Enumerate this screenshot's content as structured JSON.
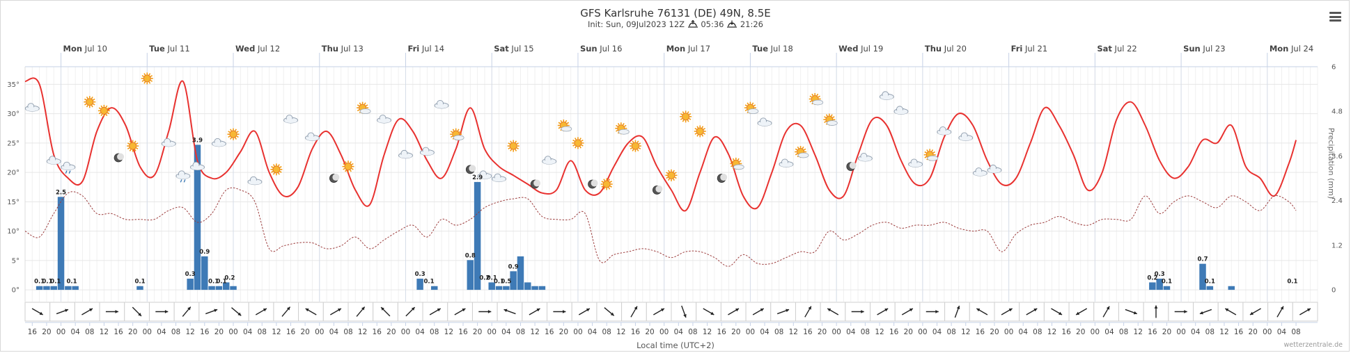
{
  "title": "GFS Karlsruhe 76131 (DE) 49N, 8.5E",
  "subtitle": {
    "init": "Init: Sun, 09Jul2023 12Z",
    "sunrise": "05:36",
    "sunset": "21:26"
  },
  "xaxis_title": "Local time (UTC+2)",
  "right_axis_title": "Precipitation (mm)",
  "credit": "wetterzentrale.de",
  "menu_label": "Chart context menu",
  "colors": {
    "temp": "#e8312f",
    "dew": "#9b3a3a",
    "precip": "#3e7ab6",
    "grid": "#e6e6e6",
    "axis": "#c6d1e6"
  },
  "chart_data": {
    "type": "line",
    "title": "GFS Karlsruhe 76131 (DE) 49N, 8.5E",
    "x_unit": "hours since Sun Jul 09 14:00 local",
    "x_range": [
      0,
      360
    ],
    "ylim_left": [
      -2,
      38
    ],
    "ylim_right": [
      0,
      6
    ],
    "y_ticks_left": [
      "0°",
      "5°",
      "10°",
      "15°",
      "20°",
      "25°",
      "30°",
      "35°"
    ],
    "y_ticks_right": [
      "0",
      "1.2",
      "2.4",
      "3.6",
      "4.8",
      "6"
    ],
    "days": [
      {
        "d": "Mon",
        "n": "Jul 10",
        "h": 10
      },
      {
        "d": "Tue",
        "n": "Jul 11",
        "h": 34
      },
      {
        "d": "Wed",
        "n": "Jul 12",
        "h": 58
      },
      {
        "d": "Thu",
        "n": "Jul 13",
        "h": 82
      },
      {
        "d": "Fri",
        "n": "Jul 14",
        "h": 106
      },
      {
        "d": "Sat",
        "n": "Jul 15",
        "h": 130
      },
      {
        "d": "Sun",
        "n": "Jul 16",
        "h": 154
      },
      {
        "d": "Mon",
        "n": "Jul 17",
        "h": 178
      },
      {
        "d": "Tue",
        "n": "Jul 18",
        "h": 202
      },
      {
        "d": "Wed",
        "n": "Jul 19",
        "h": 226
      },
      {
        "d": "Thu",
        "n": "Jul 20",
        "h": 250
      },
      {
        "d": "Fri",
        "n": "Jul 21",
        "h": 274
      },
      {
        "d": "Sat",
        "n": "Jul 22",
        "h": 298
      },
      {
        "d": "Sun",
        "n": "Jul 23",
        "h": 322
      },
      {
        "d": "Mon",
        "n": "Jul 24",
        "h": 346
      }
    ],
    "hour_labels": [
      "16",
      "20",
      "00",
      "04",
      "08",
      "12",
      "16",
      "20",
      "00",
      "04",
      "08",
      "12",
      "16",
      "20",
      "00",
      "04",
      "08",
      "12",
      "16",
      "20",
      "00",
      "04",
      "08",
      "12",
      "16",
      "20",
      "00",
      "04",
      "08",
      "12",
      "16",
      "20",
      "00",
      "04",
      "08",
      "12",
      "16",
      "20",
      "00",
      "04",
      "08",
      "12",
      "16",
      "20",
      "00",
      "04",
      "08",
      "12",
      "16",
      "20",
      "00",
      "04",
      "08",
      "12",
      "16",
      "20",
      "00",
      "04",
      "08",
      "12",
      "16",
      "20",
      "00",
      "04",
      "08",
      "12",
      "16",
      "20",
      "00",
      "04",
      "08",
      "12",
      "16",
      "20",
      "00",
      "04",
      "08",
      "12",
      "16",
      "20",
      "00",
      "04",
      "08",
      "12",
      "16",
      "20",
      "00",
      "04",
      "08"
    ],
    "series": [
      {
        "name": "Temperature",
        "axis": "left",
        "style": "solid",
        "x": [
          0,
          4,
          8,
          12,
          16,
          20,
          24,
          28,
          32,
          36,
          40,
          44,
          48,
          52,
          56,
          60,
          64,
          68,
          72,
          76,
          80,
          84,
          88,
          92,
          96,
          100,
          104,
          108,
          112,
          116,
          120,
          124,
          128,
          132,
          136,
          140,
          144,
          148,
          152,
          156,
          160,
          164,
          168,
          172,
          176,
          180,
          184,
          188,
          192,
          196,
          200,
          204,
          208,
          212,
          216,
          220,
          224,
          228,
          232,
          236,
          240,
          244,
          248,
          252,
          256,
          260,
          264,
          268,
          272,
          276,
          280,
          284,
          288,
          292,
          296,
          300,
          304,
          308,
          312,
          316,
          320,
          324,
          328,
          332,
          336,
          340,
          344,
          348,
          352,
          354
        ],
        "values": [
          35.5,
          35,
          23,
          19,
          18.5,
          27,
          31,
          28,
          21,
          19.5,
          27,
          35.5,
          22,
          19,
          20,
          23.5,
          27,
          20,
          16,
          17.5,
          24,
          27,
          23,
          17,
          14.5,
          23,
          29,
          27,
          22,
          19,
          24,
          31,
          24,
          21,
          19.5,
          18,
          16.5,
          17,
          22,
          17,
          16.5,
          21,
          25,
          26,
          21,
          17,
          13.5,
          20,
          26,
          23,
          16,
          14,
          20,
          27,
          28,
          23,
          17,
          16,
          23,
          29,
          28,
          22,
          18,
          19,
          26,
          30,
          28,
          22,
          18,
          19,
          25,
          31,
          28,
          23,
          17,
          20,
          29,
          32,
          28,
          22,
          19,
          21,
          25.5,
          25,
          28,
          21,
          19,
          16,
          21.5,
          25.5
        ]
      },
      {
        "name": "Dew point",
        "axis": "left",
        "style": "dashed",
        "x": [
          0,
          4,
          8,
          12,
          16,
          20,
          24,
          28,
          32,
          36,
          40,
          44,
          48,
          52,
          56,
          60,
          64,
          68,
          72,
          76,
          80,
          84,
          88,
          92,
          96,
          100,
          104,
          108,
          112,
          116,
          120,
          124,
          128,
          132,
          136,
          140,
          144,
          148,
          152,
          156,
          160,
          164,
          168,
          172,
          176,
          180,
          184,
          188,
          192,
          196,
          200,
          204,
          208,
          212,
          216,
          220,
          224,
          228,
          232,
          236,
          240,
          244,
          248,
          252,
          256,
          260,
          264,
          268,
          272,
          276,
          280,
          284,
          288,
          292,
          296,
          300,
          304,
          308,
          312,
          316,
          320,
          324,
          328,
          332,
          336,
          340,
          344,
          348,
          352,
          354
        ],
        "values": [
          10,
          9,
          13,
          16.5,
          16,
          13,
          13,
          12,
          12,
          12,
          13.5,
          14,
          11.5,
          13,
          17,
          17,
          15,
          7,
          7.5,
          8,
          8,
          7,
          7.5,
          9,
          7,
          8.5,
          10,
          11,
          9,
          12,
          11,
          12,
          14,
          15,
          15.5,
          15.5,
          12.5,
          12,
          12,
          13,
          5,
          6,
          6.5,
          7,
          6.5,
          5.5,
          6.5,
          6.5,
          5.5,
          4,
          6,
          4.5,
          4.5,
          5.5,
          6.5,
          6.5,
          10,
          8.5,
          9.5,
          11,
          11.5,
          10.5,
          11,
          11,
          11.5,
          10.5,
          10,
          10,
          6.5,
          9.5,
          11,
          11.5,
          12.5,
          11.5,
          11,
          12,
          12,
          12,
          16,
          13,
          15,
          16,
          15,
          14,
          16,
          15,
          13.5,
          16,
          15,
          13.5
        ]
      },
      {
        "name": "Precipitation",
        "axis": "right",
        "type": "bar",
        "x": [
          4,
          6,
          8,
          10,
          12,
          14,
          32,
          46,
          48,
          50,
          52,
          54,
          56,
          58,
          110,
          114,
          124,
          126,
          130,
          132,
          134,
          136,
          138,
          140,
          142,
          144,
          314,
          316,
          318,
          328,
          330,
          336
        ],
        "values": [
          0.1,
          0.1,
          0.1,
          2.5,
          0.1,
          0.1,
          0.1,
          0.3,
          3.9,
          0.9,
          0.1,
          0.1,
          0.2,
          0.1,
          0.3,
          0.1,
          0.8,
          2.9,
          0.2,
          0.1,
          0.1,
          0.5,
          0.9,
          0.2,
          0.1,
          0.1,
          0.2,
          0.3,
          0.1,
          0.7,
          0.1,
          0.1
        ],
        "labels": [
          {
            "x": 4,
            "t": "0.1"
          },
          {
            "x": 6.2,
            "t": "0.1"
          },
          {
            "x": 8.5,
            "t": "0.1"
          },
          {
            "x": 10,
            "t": "2.5"
          },
          {
            "x": 13,
            "t": "0.1"
          },
          {
            "x": 32,
            "t": "0.1"
          },
          {
            "x": 46,
            "t": "0.3"
          },
          {
            "x": 48,
            "t": "3.9"
          },
          {
            "x": 50,
            "t": "0.9"
          },
          {
            "x": 52.5,
            "t": "0.1"
          },
          {
            "x": 54.7,
            "t": "0.1"
          },
          {
            "x": 57,
            "t": "0.2"
          },
          {
            "x": 110,
            "t": "0.3"
          },
          {
            "x": 112.5,
            "t": "0.1"
          },
          {
            "x": 124,
            "t": "0.8"
          },
          {
            "x": 126,
            "t": "2.9"
          },
          {
            "x": 128,
            "t": "0.2"
          },
          {
            "x": 130,
            "t": "0.1"
          },
          {
            "x": 132,
            "t": "0.1"
          },
          {
            "x": 134,
            "t": "0.5"
          },
          {
            "x": 136,
            "t": "0.9"
          },
          {
            "x": 314,
            "t": "0.2"
          },
          {
            "x": 316,
            "t": "0.3"
          },
          {
            "x": 318,
            "t": "0.1"
          },
          {
            "x": 328,
            "t": "0.7"
          },
          {
            "x": 330,
            "t": "0.1"
          },
          {
            "x": 353,
            "t": "0.1"
          }
        ]
      }
    ],
    "weather_icons": [
      {
        "x": 2,
        "t": 31,
        "k": "cloud"
      },
      {
        "x": 8,
        "t": 22,
        "k": "cloud"
      },
      {
        "x": 12,
        "t": 21,
        "k": "rain"
      },
      {
        "x": 18,
        "t": 32,
        "k": "sun"
      },
      {
        "x": 22,
        "t": 30.5,
        "k": "sun"
      },
      {
        "x": 26,
        "t": 22.5,
        "k": "moon"
      },
      {
        "x": 30,
        "t": 24.5,
        "k": "sun"
      },
      {
        "x": 34,
        "t": 36,
        "k": "sun"
      },
      {
        "x": 40,
        "t": 25,
        "k": "cloud"
      },
      {
        "x": 44,
        "t": 19.5,
        "k": "rain"
      },
      {
        "x": 48,
        "t": 21,
        "k": "cloud"
      },
      {
        "x": 54,
        "t": 25,
        "k": "cloud"
      },
      {
        "x": 58,
        "t": 26.5,
        "k": "sun"
      },
      {
        "x": 64,
        "t": 18.5,
        "k": "cloud"
      },
      {
        "x": 70,
        "t": 20.5,
        "k": "sun"
      },
      {
        "x": 74,
        "t": 29,
        "k": "cloud"
      },
      {
        "x": 80,
        "t": 26,
        "k": "cloud"
      },
      {
        "x": 86,
        "t": 19,
        "k": "moon"
      },
      {
        "x": 90,
        "t": 21,
        "k": "sun"
      },
      {
        "x": 94,
        "t": 31,
        "k": "sun-cloud"
      },
      {
        "x": 100,
        "t": 29,
        "k": "cloud"
      },
      {
        "x": 106,
        "t": 23,
        "k": "cloud"
      },
      {
        "x": 112,
        "t": 23.5,
        "k": "cloud"
      },
      {
        "x": 116,
        "t": 31.5,
        "k": "cloud"
      },
      {
        "x": 120,
        "t": 26.5,
        "k": "sun-cloud"
      },
      {
        "x": 124,
        "t": 20.5,
        "k": "moon"
      },
      {
        "x": 128,
        "t": 19.5,
        "k": "cloud"
      },
      {
        "x": 132,
        "t": 19,
        "k": "cloud"
      },
      {
        "x": 136,
        "t": 24.5,
        "k": "sun"
      },
      {
        "x": 142,
        "t": 18,
        "k": "moon"
      },
      {
        "x": 146,
        "t": 22,
        "k": "cloud"
      },
      {
        "x": 150,
        "t": 28,
        "k": "sun-cloud"
      },
      {
        "x": 154,
        "t": 25,
        "k": "sun"
      },
      {
        "x": 158,
        "t": 18,
        "k": "moon"
      },
      {
        "x": 162,
        "t": 18,
        "k": "sun"
      },
      {
        "x": 166,
        "t": 27.5,
        "k": "sun-cloud"
      },
      {
        "x": 170,
        "t": 24.5,
        "k": "sun"
      },
      {
        "x": 176,
        "t": 17,
        "k": "moon"
      },
      {
        "x": 180,
        "t": 19.5,
        "k": "sun"
      },
      {
        "x": 184,
        "t": 29.5,
        "k": "sun"
      },
      {
        "x": 188,
        "t": 27,
        "k": "sun"
      },
      {
        "x": 194,
        "t": 19,
        "k": "moon"
      },
      {
        "x": 198,
        "t": 21.5,
        "k": "sun-cloud"
      },
      {
        "x": 202,
        "t": 31,
        "k": "sun-cloud"
      },
      {
        "x": 206,
        "t": 28.5,
        "k": "cloud"
      },
      {
        "x": 212,
        "t": 21.5,
        "k": "cloud"
      },
      {
        "x": 216,
        "t": 23.5,
        "k": "sun-cloud"
      },
      {
        "x": 220,
        "t": 32.5,
        "k": "sun-cloud"
      },
      {
        "x": 224,
        "t": 29,
        "k": "sun-cloud"
      },
      {
        "x": 230,
        "t": 21,
        "k": "moon"
      },
      {
        "x": 234,
        "t": 22.5,
        "k": "cloud"
      },
      {
        "x": 240,
        "t": 33,
        "k": "cloud"
      },
      {
        "x": 244,
        "t": 30.5,
        "k": "cloud"
      },
      {
        "x": 248,
        "t": 21.5,
        "k": "cloud"
      },
      {
        "x": 252,
        "t": 23,
        "k": "sun-cloud"
      },
      {
        "x": 256,
        "t": 27,
        "k": "cloud"
      },
      {
        "x": 262,
        "t": 26,
        "k": "cloud"
      },
      {
        "x": 266,
        "t": 20,
        "k": "cloud"
      },
      {
        "x": 270,
        "t": 20.5,
        "k": "cloud"
      }
    ],
    "wind_directions_deg": [
      120,
      70,
      60,
      90,
      135,
      90,
      40,
      70,
      130,
      60,
      40,
      300,
      60,
      40,
      315,
      45,
      60,
      60,
      90,
      290,
      60,
      90,
      60,
      130,
      30,
      60,
      160,
      120,
      60,
      60,
      70,
      30,
      300,
      90,
      60,
      60,
      90,
      20,
      300,
      60,
      60,
      120,
      240,
      30,
      110,
      0,
      90,
      250,
      300,
      240,
      30,
      60
    ]
  }
}
